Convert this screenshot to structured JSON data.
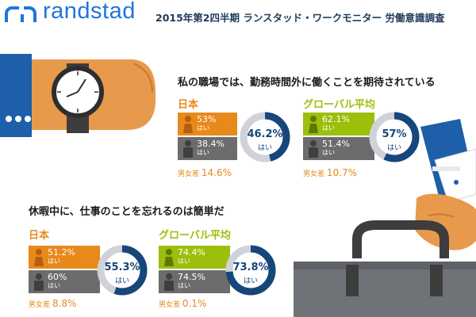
{
  "header": {
    "logo_text": "randstad",
    "title": "2015年第2四半期 ランスタッド・ワークモニター 労働意識調査"
  },
  "colors": {
    "brand_blue": "#2175d9",
    "navy": "#16467a",
    "orange": "#e8891b",
    "green": "#9cbf0b",
    "gray": "#6c6c6c",
    "donut_track": "#cfd3d8"
  },
  "icons": [
    "wristwatch-icon",
    "briefcase-icon",
    "hand-icon",
    "shirt-cuff-icon",
    "female-person-icon",
    "male-person-icon"
  ],
  "chart_data": [
    {
      "type": "bar",
      "title": "私の職場では、勤務時間外に働くことを期待されている",
      "panels": [
        {
          "region": "日本",
          "series": [
            {
              "name": "",
              "value": 53,
              "label": "53%",
              "yes": "はい"
            },
            {
              "name": "",
              "value": 38.4,
              "label": "38.4%",
              "yes": "はい"
            }
          ],
          "donut": {
            "value": 46.2,
            "label": "46.2%",
            "yes": "はい"
          },
          "gap": {
            "label": "男女差",
            "value": 14.6,
            "text": "14.6%"
          }
        },
        {
          "region": "グローバル平均",
          "series": [
            {
              "name": "",
              "value": 62.1,
              "label": "62.1%",
              "yes": "はい"
            },
            {
              "name": "",
              "value": 51.4,
              "label": "51.4%",
              "yes": "はい"
            }
          ],
          "donut": {
            "value": 57,
            "label": "57%",
            "yes": "はい"
          },
          "gap": {
            "label": "男女差",
            "value": 10.7,
            "text": "10.7%"
          }
        }
      ]
    },
    {
      "type": "bar",
      "title": "休暇中に、仕事のことを忘れるのは簡単だ",
      "panels": [
        {
          "region": "日本",
          "series": [
            {
              "name": "",
              "value": 51.2,
              "label": "51.2%",
              "yes": "はい"
            },
            {
              "name": "",
              "value": 60,
              "label": "60%",
              "yes": "はい"
            }
          ],
          "donut": {
            "value": 55.3,
            "label": "55.3%",
            "yes": "はい"
          },
          "gap": {
            "label": "男女差",
            "value": 8.8,
            "text": "8.8%"
          }
        },
        {
          "region": "グローバル平均",
          "series": [
            {
              "name": "",
              "value": 74.4,
              "label": "74.4%",
              "yes": "はい"
            },
            {
              "name": "",
              "value": 74.5,
              "label": "74.5%",
              "yes": "はい"
            }
          ],
          "donut": {
            "value": 73.8,
            "label": "73.8%",
            "yes": "はい"
          },
          "gap": {
            "label": "男女差",
            "value": 0.1,
            "text": "0.1%"
          }
        }
      ]
    }
  ]
}
